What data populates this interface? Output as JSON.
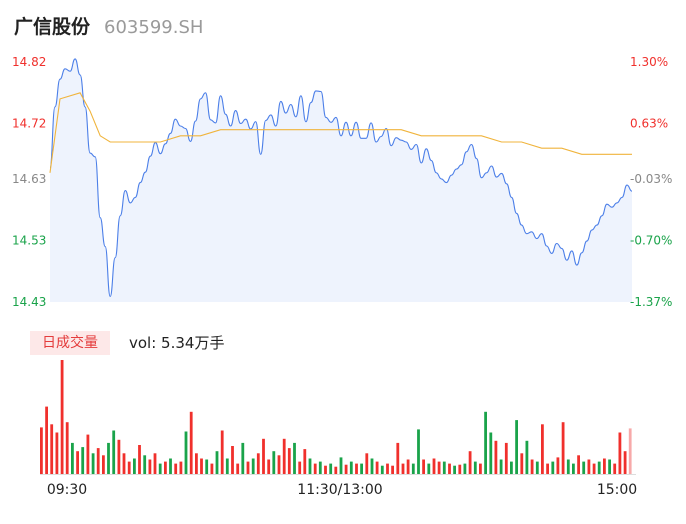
{
  "header": {
    "name": "广信股份",
    "code": "603599.SH"
  },
  "colors": {
    "price": "#4c7fe8",
    "avg": "#f0b43c",
    "up": "#f0302c",
    "down": "#1aa34a",
    "neutral": "#888888",
    "area": "#eef3fd"
  },
  "chart_data": {
    "type": "line",
    "x_ticks": [
      "09:30",
      "11:30/13:00",
      "15:00"
    ],
    "y_ticks": [
      14.82,
      14.72,
      14.63,
      14.53,
      14.43
    ],
    "y_tick_labels": [
      "14.82",
      "14.72",
      "14.63",
      "14.53",
      "14.43"
    ],
    "pct_ticks": [
      "1.30%",
      "0.63%",
      "-0.03%",
      "-0.70%",
      "-1.37%"
    ],
    "ylim": [
      14.43,
      14.82
    ],
    "prev_close": 14.63,
    "series": [
      {
        "values": [
          14.65,
          14.75,
          14.79,
          14.81,
          14.8,
          14.82,
          14.78,
          14.71,
          14.66,
          14.64,
          14.57,
          14.52,
          14.44,
          14.5,
          14.58,
          14.61,
          14.58,
          14.59,
          14.62,
          14.64,
          14.67,
          14.68,
          14.66,
          14.68,
          14.7,
          14.72,
          14.71,
          14.7,
          14.69,
          14.72,
          14.75,
          14.78,
          14.73,
          14.72,
          14.76,
          14.73,
          14.72,
          14.74,
          14.72,
          14.73,
          14.71,
          14.72,
          14.67,
          14.72,
          14.73,
          14.72,
          14.76,
          14.74,
          14.75,
          14.73,
          14.76,
          14.72,
          14.75,
          14.78,
          14.77,
          14.73,
          14.72,
          14.73,
          14.7,
          14.72,
          14.7,
          14.72,
          14.7,
          14.7,
          14.72,
          14.69,
          14.7,
          14.71,
          14.68,
          14.7,
          14.7,
          14.69,
          14.68,
          14.69,
          14.65,
          14.68,
          14.66,
          14.64,
          14.63,
          14.62,
          14.63,
          14.64,
          14.65,
          14.67,
          14.69,
          14.66,
          14.63,
          14.64,
          14.65,
          14.63,
          14.64,
          14.62,
          14.6,
          14.57,
          14.55,
          14.54,
          14.54,
          14.53,
          14.54,
          14.52,
          14.51,
          14.53,
          14.52,
          14.5,
          14.51,
          14.49,
          14.51,
          14.53,
          14.55,
          14.56,
          14.57,
          14.59,
          14.58,
          14.59,
          14.6,
          14.62,
          14.61
        ],
        "raw_points": [
          [
            0,
            14.648
          ],
          [
            1,
            14.747
          ],
          [
            2,
            14.792
          ],
          [
            3,
            14.809
          ],
          [
            4,
            14.805
          ],
          [
            5,
            14.825
          ],
          [
            6,
            14.799
          ],
          [
            7,
            14.747
          ],
          [
            8,
            14.672
          ],
          [
            9,
            14.666
          ],
          [
            10,
            14.567
          ],
          [
            11,
            14.52
          ],
          [
            12,
            14.439
          ],
          [
            13,
            14.502
          ],
          [
            14,
            14.57
          ],
          [
            15,
            14.611
          ],
          [
            16,
            14.591
          ],
          [
            17,
            14.6
          ],
          [
            18,
            14.624
          ],
          [
            19,
            14.641
          ],
          [
            20,
            14.667
          ],
          [
            21,
            14.689
          ],
          [
            22,
            14.671
          ],
          [
            23,
            14.687
          ],
          [
            24,
            14.704
          ],
          [
            25,
            14.727
          ],
          [
            26,
            14.716
          ],
          [
            27,
            14.712
          ],
          [
            28,
            14.691
          ],
          [
            29,
            14.724
          ],
          [
            30,
            14.76
          ],
          [
            31,
            14.77
          ],
          [
            32,
            14.726
          ],
          [
            33,
            14.721
          ],
          [
            34,
            14.765
          ],
          [
            35,
            14.735
          ],
          [
            36,
            14.716
          ],
          [
            37,
            14.741
          ],
          [
            38,
            14.72
          ],
          [
            39,
            14.727
          ],
          [
            40,
            14.711
          ],
          [
            41,
            14.723
          ],
          [
            42,
            14.67
          ],
          [
            43,
            14.725
          ],
          [
            44,
            14.734
          ],
          [
            45,
            14.716
          ],
          [
            46,
            14.756
          ],
          [
            47,
            14.737
          ],
          [
            48,
            14.751
          ],
          [
            49,
            14.731
          ],
          [
            50,
            14.765
          ],
          [
            51,
            14.723
          ],
          [
            52,
            14.754
          ],
          [
            53,
            14.773
          ],
          [
            54,
            14.772
          ],
          [
            55,
            14.73
          ],
          [
            56,
            14.722
          ],
          [
            57,
            14.73
          ],
          [
            58,
            14.7
          ],
          [
            59,
            14.722
          ],
          [
            60,
            14.7
          ],
          [
            61,
            14.722
          ],
          [
            62,
            14.696
          ],
          [
            63,
            14.696
          ],
          [
            64,
            14.721
          ],
          [
            65,
            14.69
          ],
          [
            66,
            14.699
          ],
          [
            67,
            14.712
          ],
          [
            68,
            14.684
          ],
          [
            69,
            14.697
          ],
          [
            70,
            14.693
          ],
          [
            71,
            14.69
          ],
          [
            72,
            14.678
          ],
          [
            73,
            14.686
          ],
          [
            74,
            14.656
          ],
          [
            75,
            14.679
          ],
          [
            76,
            14.66
          ],
          [
            77,
            14.64
          ],
          [
            78,
            14.63
          ],
          [
            79,
            14.624
          ],
          [
            80,
            14.636
          ],
          [
            81,
            14.646
          ],
          [
            82,
            14.653
          ],
          [
            83,
            14.674
          ],
          [
            84,
            14.686
          ],
          [
            85,
            14.663
          ],
          [
            86,
            14.632
          ],
          [
            87,
            14.64
          ],
          [
            88,
            14.651
          ],
          [
            89,
            14.633
          ],
          [
            90,
            14.639
          ],
          [
            91,
            14.622
          ],
          [
            92,
            14.6
          ],
          [
            93,
            14.574
          ],
          [
            94,
            14.555
          ],
          [
            95,
            14.541
          ],
          [
            96,
            14.544
          ],
          [
            97,
            14.533
          ],
          [
            98,
            14.541
          ],
          [
            99,
            14.521
          ],
          [
            100,
            14.509
          ],
          [
            101,
            14.525
          ],
          [
            102,
            14.517
          ],
          [
            103,
            14.498
          ],
          [
            104,
            14.513
          ],
          [
            105,
            14.49
          ],
          [
            106,
            14.51
          ],
          [
            107,
            14.529
          ],
          [
            108,
            14.547
          ],
          [
            109,
            14.555
          ],
          [
            110,
            14.57
          ],
          [
            111,
            14.589
          ],
          [
            112,
            14.584
          ],
          [
            113,
            14.591
          ],
          [
            114,
            14.6
          ],
          [
            115,
            14.62
          ],
          [
            116,
            14.61
          ]
        ]
      }
    ],
    "avg_line": [
      [
        0,
        14.64
      ],
      [
        2,
        14.76
      ],
      [
        6,
        14.77
      ],
      [
        8,
        14.74
      ],
      [
        10,
        14.7
      ],
      [
        12,
        14.69
      ],
      [
        14,
        14.69
      ],
      [
        18,
        14.69
      ],
      [
        22,
        14.69
      ],
      [
        26,
        14.7
      ],
      [
        30,
        14.7
      ],
      [
        34,
        14.71
      ],
      [
        38,
        14.71
      ],
      [
        46,
        14.71
      ],
      [
        50,
        14.71
      ],
      [
        58,
        14.71
      ],
      [
        62,
        14.71
      ],
      [
        66,
        14.71
      ],
      [
        70,
        14.71
      ],
      [
        74,
        14.7
      ],
      [
        78,
        14.7
      ],
      [
        82,
        14.7
      ],
      [
        86,
        14.7
      ],
      [
        90,
        14.69
      ],
      [
        94,
        14.69
      ],
      [
        98,
        14.68
      ],
      [
        102,
        14.68
      ],
      [
        106,
        14.67
      ],
      [
        110,
        14.67
      ],
      [
        116,
        14.67
      ]
    ],
    "volume": {
      "label": "日成交量",
      "summary": "vol: 5.34万手",
      "bars": [
        {
          "v": 45,
          "c": "up"
        },
        {
          "v": 65,
          "c": "up"
        },
        {
          "v": 48,
          "c": "up"
        },
        {
          "v": 40,
          "c": "up"
        },
        {
          "v": 110,
          "c": "up"
        },
        {
          "v": 50,
          "c": "up"
        },
        {
          "v": 30,
          "c": "down"
        },
        {
          "v": 22,
          "c": "up"
        },
        {
          "v": 26,
          "c": "down"
        },
        {
          "v": 38,
          "c": "up"
        },
        {
          "v": 20,
          "c": "down"
        },
        {
          "v": 25,
          "c": "up"
        },
        {
          "v": 18,
          "c": "up"
        },
        {
          "v": 30,
          "c": "down"
        },
        {
          "v": 42,
          "c": "down"
        },
        {
          "v": 33,
          "c": "up"
        },
        {
          "v": 20,
          "c": "up"
        },
        {
          "v": 12,
          "c": "up"
        },
        {
          "v": 15,
          "c": "down"
        },
        {
          "v": 28,
          "c": "up"
        },
        {
          "v": 18,
          "c": "down"
        },
        {
          "v": 14,
          "c": "up"
        },
        {
          "v": 20,
          "c": "up"
        },
        {
          "v": 10,
          "c": "down"
        },
        {
          "v": 12,
          "c": "up"
        },
        {
          "v": 15,
          "c": "down"
        },
        {
          "v": 10,
          "c": "up"
        },
        {
          "v": 12,
          "c": "up"
        },
        {
          "v": 41,
          "c": "down"
        },
        {
          "v": 60,
          "c": "up"
        },
        {
          "v": 20,
          "c": "up"
        },
        {
          "v": 15,
          "c": "up"
        },
        {
          "v": 14,
          "c": "down"
        },
        {
          "v": 10,
          "c": "up"
        },
        {
          "v": 22,
          "c": "down"
        },
        {
          "v": 42,
          "c": "up"
        },
        {
          "v": 15,
          "c": "down"
        },
        {
          "v": 27,
          "c": "up"
        },
        {
          "v": 10,
          "c": "up"
        },
        {
          "v": 30,
          "c": "down"
        },
        {
          "v": 12,
          "c": "up"
        },
        {
          "v": 15,
          "c": "down"
        },
        {
          "v": 20,
          "c": "up"
        },
        {
          "v": 34,
          "c": "up"
        },
        {
          "v": 14,
          "c": "up"
        },
        {
          "v": 22,
          "c": "down"
        },
        {
          "v": 18,
          "c": "up"
        },
        {
          "v": 34,
          "c": "up"
        },
        {
          "v": 25,
          "c": "up"
        },
        {
          "v": 30,
          "c": "down"
        },
        {
          "v": 12,
          "c": "up"
        },
        {
          "v": 24,
          "c": "up"
        },
        {
          "v": 15,
          "c": "down"
        },
        {
          "v": 10,
          "c": "up"
        },
        {
          "v": 12,
          "c": "down"
        },
        {
          "v": 8,
          "c": "up"
        },
        {
          "v": 10,
          "c": "down"
        },
        {
          "v": 7,
          "c": "up"
        },
        {
          "v": 16,
          "c": "down"
        },
        {
          "v": 9,
          "c": "up"
        },
        {
          "v": 12,
          "c": "down"
        },
        {
          "v": 10,
          "c": "up"
        },
        {
          "v": 10,
          "c": "down"
        },
        {
          "v": 20,
          "c": "up"
        },
        {
          "v": 15,
          "c": "down"
        },
        {
          "v": 12,
          "c": "up"
        },
        {
          "v": 8,
          "c": "down"
        },
        {
          "v": 10,
          "c": "up"
        },
        {
          "v": 8,
          "c": "up"
        },
        {
          "v": 30,
          "c": "up"
        },
        {
          "v": 10,
          "c": "up"
        },
        {
          "v": 14,
          "c": "up"
        },
        {
          "v": 10,
          "c": "down"
        },
        {
          "v": 43,
          "c": "down"
        },
        {
          "v": 14,
          "c": "up"
        },
        {
          "v": 10,
          "c": "down"
        },
        {
          "v": 15,
          "c": "up"
        },
        {
          "v": 12,
          "c": "up"
        },
        {
          "v": 12,
          "c": "down"
        },
        {
          "v": 10,
          "c": "up"
        },
        {
          "v": 8,
          "c": "down"
        },
        {
          "v": 9,
          "c": "up"
        },
        {
          "v": 10,
          "c": "down"
        },
        {
          "v": 22,
          "c": "up"
        },
        {
          "v": 12,
          "c": "down"
        },
        {
          "v": 10,
          "c": "up"
        },
        {
          "v": 60,
          "c": "down"
        },
        {
          "v": 40,
          "c": "down"
        },
        {
          "v": 32,
          "c": "up"
        },
        {
          "v": 14,
          "c": "down"
        },
        {
          "v": 30,
          "c": "up"
        },
        {
          "v": 12,
          "c": "down"
        },
        {
          "v": 52,
          "c": "down"
        },
        {
          "v": 20,
          "c": "up"
        },
        {
          "v": 32,
          "c": "down"
        },
        {
          "v": 14,
          "c": "up"
        },
        {
          "v": 12,
          "c": "down"
        },
        {
          "v": 48,
          "c": "up"
        },
        {
          "v": 10,
          "c": "up"
        },
        {
          "v": 12,
          "c": "down"
        },
        {
          "v": 16,
          "c": "up"
        },
        {
          "v": 50,
          "c": "up"
        },
        {
          "v": 14,
          "c": "down"
        },
        {
          "v": 10,
          "c": "down"
        },
        {
          "v": 18,
          "c": "up"
        },
        {
          "v": 12,
          "c": "down"
        },
        {
          "v": 14,
          "c": "up"
        },
        {
          "v": 10,
          "c": "up"
        },
        {
          "v": 12,
          "c": "down"
        },
        {
          "v": 15,
          "c": "up"
        },
        {
          "v": 14,
          "c": "down"
        },
        {
          "v": 10,
          "c": "up"
        },
        {
          "v": 40,
          "c": "up"
        },
        {
          "v": 22,
          "c": "up"
        },
        {
          "v": 44,
          "c": "neutral"
        }
      ]
    }
  }
}
